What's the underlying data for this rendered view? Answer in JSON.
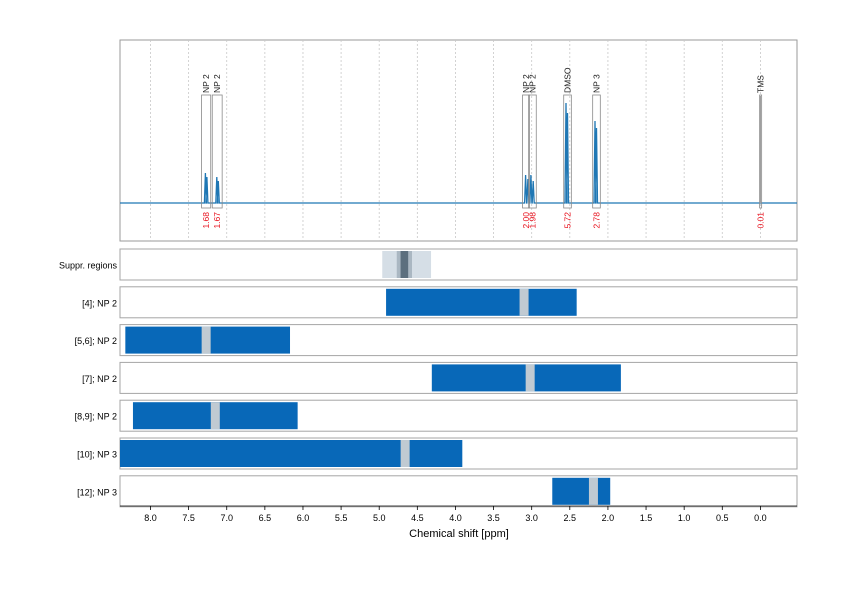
{
  "chart_data": {
    "type": "line",
    "xlabel": "Chemical shift [ppm]",
    "xlim": [
      8.4,
      -0.48
    ],
    "x_reversed": true,
    "xticks": [
      8.0,
      7.5,
      7.0,
      6.5,
      6.0,
      5.5,
      5.0,
      4.5,
      4.0,
      3.5,
      3.0,
      2.5,
      2.0,
      1.5,
      1.0,
      0.5,
      0.0
    ],
    "xtick_labels": [
      "8.0",
      "7.5",
      "7.0",
      "6.5",
      "6.0",
      "5.5",
      "5.0",
      "4.5",
      "4.0",
      "3.5",
      "3.0",
      "2.5",
      "2.0",
      "1.5",
      "1.0",
      "0.5",
      "0.0"
    ],
    "grid": true,
    "colors": {
      "spectrum": "#1f77b4",
      "bar": "#0868b8",
      "center_mark": "#c0cad2",
      "integral": "#e8101c",
      "suppr_light": "#d5dee6",
      "suppr_mid": "#aab7c2",
      "suppr_dark": "#5c6f7e"
    },
    "spectrum": {
      "peaks": [
        {
          "x": 7.28,
          "h": 0.3
        },
        {
          "x": 7.26,
          "h": 0.26
        },
        {
          "x": 7.13,
          "h": 0.26
        },
        {
          "x": 7.11,
          "h": 0.22
        },
        {
          "x": 3.08,
          "h": 0.28
        },
        {
          "x": 3.05,
          "h": 0.24
        },
        {
          "x": 3.01,
          "h": 0.28
        },
        {
          "x": 2.98,
          "h": 0.22
        },
        {
          "x": 2.55,
          "h": 1.0
        },
        {
          "x": 2.53,
          "h": 0.9
        },
        {
          "x": 2.17,
          "h": 0.82
        },
        {
          "x": 2.15,
          "h": 0.75
        },
        {
          "x": 0.0,
          "h": 0.0
        }
      ],
      "regions": [
        {
          "label": "NP 2",
          "from": 7.33,
          "to": 7.21,
          "integral": "1.68"
        },
        {
          "label": "NP 2",
          "from": 7.19,
          "to": 7.06,
          "integral": "1.67"
        },
        {
          "label": "NP 2",
          "from": 3.12,
          "to": 3.03,
          "integral": "2.00"
        },
        {
          "label": "NP 2",
          "from": 3.04,
          "to": 2.94,
          "integral": "1.98"
        },
        {
          "label": "DMSO",
          "from": 2.58,
          "to": 2.48,
          "integral": "5.72"
        },
        {
          "label": "NP 3",
          "from": 2.2,
          "to": 2.1,
          "integral": "2.78"
        },
        {
          "label": "TMS",
          "from": 0.01,
          "to": -0.01,
          "integral": "0.01"
        }
      ]
    },
    "suppressed_regions": {
      "label": "Suppr. regions",
      "outer": [
        4.96,
        4.32
      ],
      "inner": [
        4.77,
        4.57
      ],
      "core": [
        4.72,
        4.62
      ]
    },
    "tracks": [
      {
        "label": "[4]; NP 2",
        "from": 4.91,
        "to": 2.41,
        "center": 3.1
      },
      {
        "label": "[5,6]; NP 2",
        "from": 8.33,
        "to": 6.17,
        "center": 7.27
      },
      {
        "label": "[7]; NP 2",
        "from": 4.31,
        "to": 1.83,
        "center": 3.02
      },
      {
        "label": "[8,9]; NP 2",
        "from": 8.23,
        "to": 6.07,
        "center": 7.15
      },
      {
        "label": "[10]; NP 3",
        "from": 8.4,
        "to": 3.91,
        "center": 4.66
      },
      {
        "label": "[12]; NP 3",
        "from": 2.73,
        "to": 1.97,
        "center": 2.19
      }
    ]
  }
}
